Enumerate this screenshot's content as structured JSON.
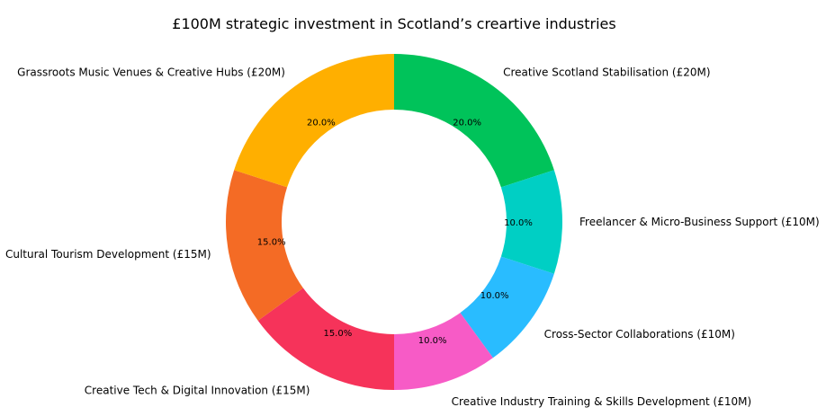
{
  "chart_data": {
    "type": "pie",
    "variant": "donut",
    "title": "£100M strategic investment in Scotland’s creartive industries",
    "start_angle_deg": 90,
    "direction": "clockwise",
    "slices": [
      {
        "label": "Creative Scotland Stabilisation (£20M)",
        "value": 20,
        "pct_label": "20.0%",
        "color": "#00C35A"
      },
      {
        "label": "Freelancer & Micro-Business Support (£10M)",
        "value": 10,
        "pct_label": "10.0%",
        "color": "#00CFC4"
      },
      {
        "label": "Cross-Sector Collaborations (£10M)",
        "value": 10,
        "pct_label": "10.0%",
        "color": "#29BCFF"
      },
      {
        "label": "Creative Industry Training & Skills Development (£10M)",
        "value": 10,
        "pct_label": "10.0%",
        "color": "#F75BC6"
      },
      {
        "label": "Creative Tech & Digital Innovation (£15M)",
        "value": 15,
        "pct_label": "15.0%",
        "color": "#F6335A"
      },
      {
        "label": "Cultural Tourism Development (£15M)",
        "value": 15,
        "pct_label": "15.0%",
        "color": "#F46B25"
      },
      {
        "label": "Grassroots Music Venues & Creative Hubs (£20M)",
        "value": 20,
        "pct_label": "20.0%",
        "color": "#FFAF00"
      }
    ]
  }
}
